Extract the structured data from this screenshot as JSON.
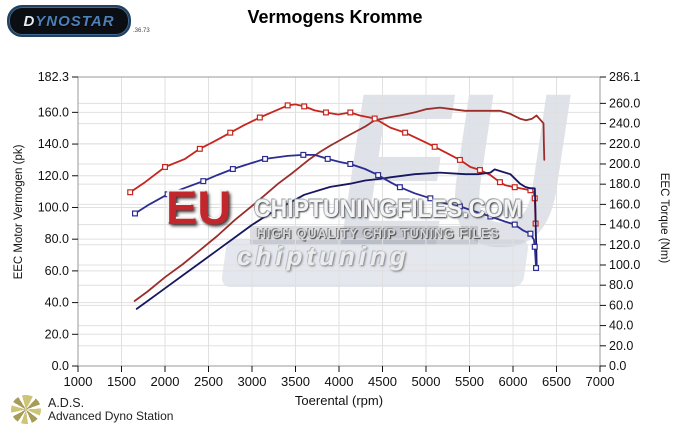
{
  "header": {
    "logo_first_letter": "D",
    "logo_rest": "YNOSTAR",
    "logo_suffix": ".36.73",
    "title": "Vermogens Kromme"
  },
  "watermark": {
    "big_background": "EU",
    "eu": "EU",
    "main": "CHIPTUNINGFILES.COM",
    "sub": "HIGH QUALITY CHIP TUNING FILES",
    "script": "chiptuning"
  },
  "footer": {
    "abbr": "A.D.S.",
    "name": "Advanced Dyno Station"
  },
  "chart_data": {
    "type": "line",
    "title": "Vermogens Kromme",
    "xlabel": "Toerental (rpm)",
    "ylabel_left": "EEC Motor Vermogen (pk)",
    "ylabel_right": "EEC Torque (Nm)",
    "xlim": [
      1000,
      7000
    ],
    "ylim_left": [
      0,
      182.3
    ],
    "ylim_right": [
      0,
      286.1
    ],
    "x_ticks": [
      1000,
      1500,
      2000,
      2500,
      3000,
      3500,
      4000,
      4500,
      5000,
      5500,
      6000,
      6500,
      7000
    ],
    "left_ticks": [
      182.3,
      160.0,
      140.0,
      120.0,
      100.0,
      80.0,
      60.0,
      40.0,
      20.0,
      0.0
    ],
    "right_ticks": [
      286.1,
      260.0,
      240.0,
      220.0,
      200.0,
      180.0,
      160.0,
      140.0,
      120.0,
      100.0,
      80.0,
      60.0,
      40.0,
      20.0,
      0.0
    ],
    "grid": true,
    "legend": "none",
    "colors": {
      "power_tuned": "#9b2d2a",
      "torque_tuned": "#c6261e",
      "power_stock": "#171760",
      "torque_stock": "#2c2c92",
      "grid": "#e0e0e0",
      "border": "#999999"
    },
    "series": [
      {
        "name": "power_tuned",
        "axis": "left",
        "unit": "pk",
        "color": "#9b2d2a",
        "markers": false,
        "points": [
          [
            1650,
            41
          ],
          [
            1800,
            47
          ],
          [
            2000,
            56
          ],
          [
            2200,
            64
          ],
          [
            2400,
            73
          ],
          [
            2600,
            82
          ],
          [
            2800,
            92
          ],
          [
            3000,
            101
          ],
          [
            3130,
            107
          ],
          [
            3300,
            115
          ],
          [
            3470,
            122
          ],
          [
            3650,
            130
          ],
          [
            3780,
            135
          ],
          [
            3900,
            139
          ],
          [
            4130,
            146
          ],
          [
            4300,
            151
          ],
          [
            4410,
            155
          ],
          [
            4590,
            157
          ],
          [
            4700,
            158
          ],
          [
            4870,
            160
          ],
          [
            5000,
            162
          ],
          [
            5160,
            163
          ],
          [
            5300,
            162
          ],
          [
            5450,
            161
          ],
          [
            5560,
            161
          ],
          [
            5740,
            161
          ],
          [
            5850,
            161
          ],
          [
            5970,
            159
          ],
          [
            6080,
            156
          ],
          [
            6150,
            155
          ],
          [
            6220,
            156
          ],
          [
            6270,
            158
          ],
          [
            6320,
            155
          ],
          [
            6350,
            153
          ],
          [
            6355,
            140
          ],
          [
            6360,
            130
          ]
        ]
      },
      {
        "name": "torque_tuned",
        "axis": "right",
        "unit": "Nm",
        "color": "#c6261e",
        "markers": true,
        "points": [
          [
            1600,
            172
          ],
          [
            1770,
            182
          ],
          [
            2000,
            197
          ],
          [
            2230,
            205
          ],
          [
            2400,
            215
          ],
          [
            2560,
            222
          ],
          [
            2750,
            231
          ],
          [
            2900,
            238
          ],
          [
            3090,
            246
          ],
          [
            3250,
            252
          ],
          [
            3410,
            258
          ],
          [
            3500,
            259
          ],
          [
            3600,
            257
          ],
          [
            3720,
            253
          ],
          [
            3850,
            251
          ],
          [
            3990,
            249
          ],
          [
            4130,
            251
          ],
          [
            4240,
            248
          ],
          [
            4410,
            245
          ],
          [
            4590,
            236
          ],
          [
            4760,
            231
          ],
          [
            4930,
            224
          ],
          [
            5100,
            217
          ],
          [
            5280,
            209
          ],
          [
            5390,
            204
          ],
          [
            5510,
            197
          ],
          [
            5620,
            194
          ],
          [
            5740,
            189
          ],
          [
            5850,
            182
          ],
          [
            5910,
            179
          ],
          [
            6020,
            177
          ],
          [
            6140,
            175
          ],
          [
            6200,
            174
          ],
          [
            6240,
            172
          ],
          [
            6250,
            166
          ],
          [
            6255,
            153
          ],
          [
            6260,
            141
          ]
        ]
      },
      {
        "name": "power_stock",
        "axis": "left",
        "unit": "pk",
        "color": "#171760",
        "markers": false,
        "points": [
          [
            1675,
            36
          ],
          [
            1800,
            41
          ],
          [
            2000,
            49
          ],
          [
            2200,
            57
          ],
          [
            2400,
            65
          ],
          [
            2600,
            73
          ],
          [
            2800,
            81
          ],
          [
            3000,
            89
          ],
          [
            3200,
            96
          ],
          [
            3400,
            102
          ],
          [
            3600,
            108
          ],
          [
            3780,
            111
          ],
          [
            3900,
            113
          ],
          [
            4130,
            115
          ],
          [
            4300,
            117
          ],
          [
            4470,
            118
          ],
          [
            4590,
            119
          ],
          [
            4870,
            121
          ],
          [
            5160,
            122
          ],
          [
            5450,
            121
          ],
          [
            5600,
            121
          ],
          [
            5740,
            122
          ],
          [
            5790,
            124
          ],
          [
            5850,
            123
          ],
          [
            5970,
            121
          ],
          [
            6080,
            115
          ],
          [
            6140,
            113
          ],
          [
            6200,
            112
          ],
          [
            6250,
            112
          ],
          [
            6258,
            100
          ],
          [
            6262,
            85
          ],
          [
            6268,
            75
          ],
          [
            6272,
            62
          ]
        ]
      },
      {
        "name": "torque_stock",
        "axis": "right",
        "unit": "Nm",
        "color": "#2c2c92",
        "markers": true,
        "points": [
          [
            1655,
            151
          ],
          [
            1820,
            160
          ],
          [
            2030,
            170
          ],
          [
            2250,
            177
          ],
          [
            2440,
            183
          ],
          [
            2600,
            189
          ],
          [
            2780,
            195
          ],
          [
            2960,
            200
          ],
          [
            3150,
            205
          ],
          [
            3410,
            208
          ],
          [
            3590,
            209
          ],
          [
            3720,
            209
          ],
          [
            3870,
            205
          ],
          [
            4010,
            202
          ],
          [
            4130,
            200
          ],
          [
            4300,
            195
          ],
          [
            4450,
            189
          ],
          [
            4590,
            182
          ],
          [
            4700,
            177
          ],
          [
            4870,
            171
          ],
          [
            5050,
            166
          ],
          [
            5220,
            161
          ],
          [
            5390,
            158
          ],
          [
            5560,
            153
          ],
          [
            5740,
            148
          ],
          [
            5910,
            143
          ],
          [
            6020,
            140
          ],
          [
            6120,
            134
          ],
          [
            6200,
            131
          ],
          [
            6240,
            125
          ],
          [
            6250,
            118
          ],
          [
            6258,
            108
          ],
          [
            6265,
            97
          ]
        ]
      }
    ]
  }
}
